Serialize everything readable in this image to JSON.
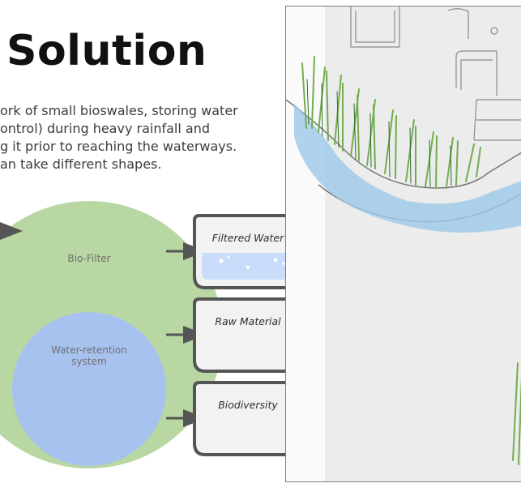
{
  "slide": {
    "title": "Solution",
    "description_lines": [
      "ork of small bioswales, storing water",
      "ontrol) during heavy rainfall and",
      "g it prior to reaching the waterways.",
      "an take different shapes."
    ]
  },
  "diagram": {
    "outer_circle_label": "Bio-Filter",
    "inner_circle_label": [
      "Water-retention",
      "system"
    ],
    "outputs": [
      "Filtered Water",
      "Raw Material",
      "Biodiversity"
    ]
  },
  "colors": {
    "outer_circle": "#b8d7a2",
    "inner_circle": "#a8c2ef",
    "box_fill": "#f2f2f2",
    "box_stroke": "#555555",
    "arrow": "#555555",
    "water_fill": "#c9dcfa",
    "sketch_water": "#9cc9e8",
    "sketch_grass": "#73ad4f"
  },
  "sketch": {
    "type": "bioswale-illustration"
  }
}
